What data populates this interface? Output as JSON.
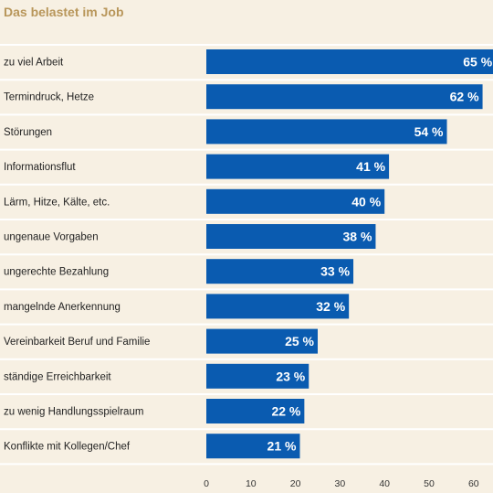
{
  "title": "Das belastet im Job",
  "colors": {
    "background": "#f7f0e3",
    "bar": "#0a5bb0",
    "separator": "#ffffff",
    "title": "#b8965a"
  },
  "chart_data": {
    "type": "bar",
    "orientation": "horizontal",
    "title": "Das belastet im Job",
    "categories": [
      "zu viel Arbeit",
      "Termindruck, Hetze",
      "Störungen",
      "Informationsflut",
      "Lärm, Hitze, Kälte, etc.",
      "ungenaue Vorgaben",
      "ungerechte Bezahlung",
      "mangelnde Anerkennung",
      "Vereinbarkeit Beruf und Familie",
      "ständige Erreichbarkeit",
      "zu wenig Handlungsspielraum",
      "Konflikte mit Kollegen/Chef"
    ],
    "values": [
      65,
      62,
      54,
      41,
      40,
      38,
      33,
      32,
      25,
      23,
      22,
      21
    ],
    "value_labels": [
      "65 %",
      "62 %",
      "54 %",
      "41 %",
      "40 %",
      "38 %",
      "33 %",
      "32 %",
      "25 %",
      "23 %",
      "22 %",
      "21 %"
    ],
    "xticks": [
      0,
      10,
      20,
      30,
      40,
      50,
      60
    ],
    "xlim": [
      0,
      65
    ],
    "grid": false
  }
}
